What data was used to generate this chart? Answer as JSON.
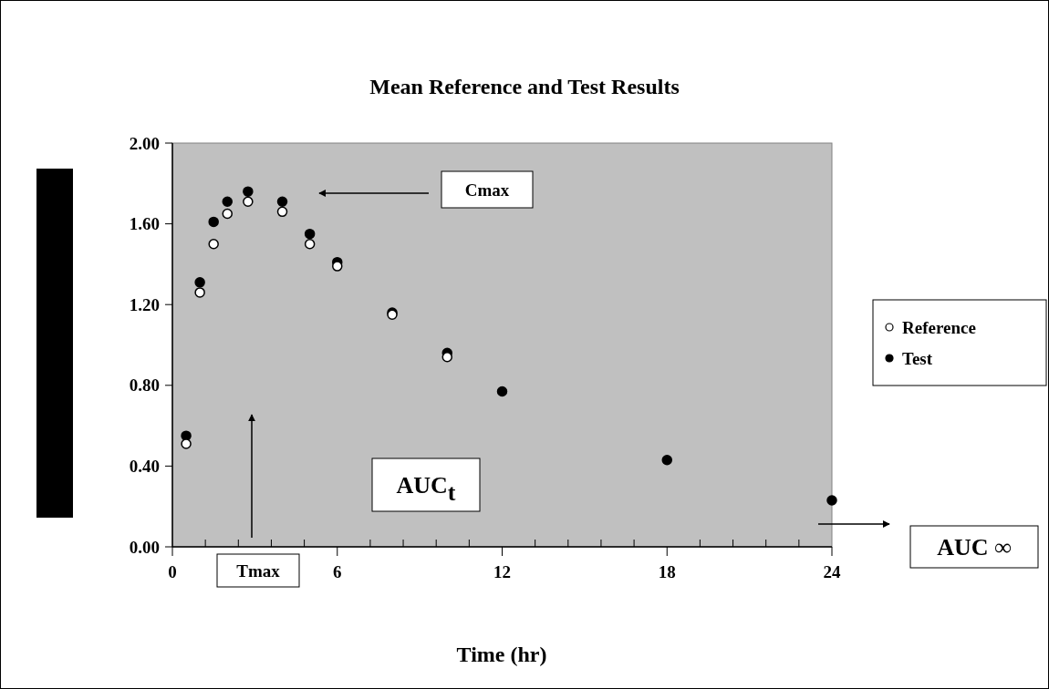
{
  "chart_data": {
    "type": "scatter",
    "title": "Mean Reference and Test Results",
    "xlabel": "Time (hr)",
    "x": [
      0.5,
      1,
      1.5,
      2,
      2.75,
      4,
      5,
      6,
      8,
      10,
      12,
      18,
      24
    ],
    "series": [
      {
        "name": "Reference",
        "color": "#ffffff",
        "values": [
          0.51,
          1.26,
          1.5,
          1.65,
          1.71,
          1.66,
          1.5,
          1.39,
          1.15,
          0.94,
          null,
          null,
          null
        ]
      },
      {
        "name": "Test",
        "color": "#000000",
        "values": [
          0.55,
          1.31,
          1.61,
          1.71,
          1.76,
          1.71,
          1.55,
          1.41,
          1.16,
          0.96,
          0.77,
          0.43,
          0.23
        ]
      }
    ],
    "xlim": [
      0,
      24
    ],
    "xticks": [
      0,
      {
        "value": 1.2,
        "label": null
      },
      {
        "value": 2.4,
        "label": null
      },
      {
        "value": 3.6,
        "label": null
      },
      {
        "value": 4.8,
        "label": null
      },
      6,
      {
        "value": 7.2,
        "label": null
      },
      {
        "value": 8.4,
        "label": null
      },
      {
        "value": 9.6,
        "label": null
      },
      {
        "value": 10.8,
        "label": null
      },
      12,
      {
        "value": 13.2,
        "label": null
      },
      {
        "value": 14.4,
        "label": null
      },
      {
        "value": 15.6,
        "label": null
      },
      {
        "value": 16.8,
        "label": null
      },
      18,
      {
        "value": 19.2,
        "label": null
      },
      {
        "value": 20.4,
        "label": null
      },
      {
        "value": 21.6,
        "label": null
      },
      {
        "value": 22.8,
        "label": null
      },
      24
    ],
    "ylim": [
      0,
      2
    ],
    "yticks": [
      {
        "value": 0,
        "label": "0.00"
      },
      {
        "value": 0.4,
        "label": "0.40"
      },
      {
        "value": 0.8,
        "label": "0.80"
      },
      {
        "value": 1.2,
        "label": "1.20"
      },
      {
        "value": 1.6,
        "label": "1.60"
      },
      {
        "value": 2,
        "label": "2.00"
      }
    ],
    "marker": "circle",
    "legend": "right",
    "annotations": [
      "Cmax",
      "Tmax",
      "AUC$_{t}$",
      "AUC ∞"
    ]
  }
}
